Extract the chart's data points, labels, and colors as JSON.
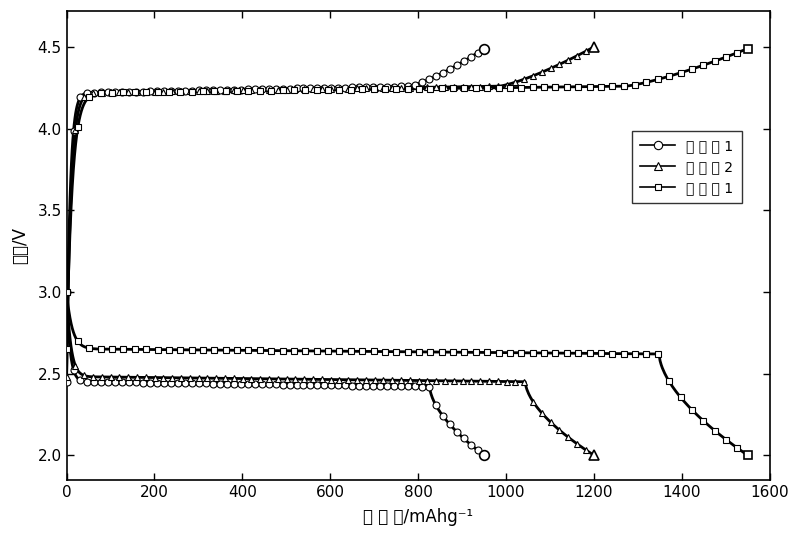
{
  "title": "",
  "xlabel": "比 容 量/mAhg⁻¹",
  "ylabel": "电压/V",
  "xlim": [
    0,
    1600
  ],
  "ylim": [
    1.85,
    4.72
  ],
  "xticks": [
    0,
    200,
    400,
    600,
    800,
    1000,
    1200,
    1400,
    1600
  ],
  "yticks": [
    2.0,
    2.5,
    3.0,
    3.5,
    4.0,
    4.5
  ],
  "legend_labels": [
    "对 比 例 1",
    "对 比 例 2",
    "实 施 例 1"
  ],
  "legend_markers": [
    "o",
    "^",
    "s"
  ],
  "line_color": "#000000",
  "background_color": "#ffffff",
  "series": [
    {
      "name": "对 比 例 1",
      "marker": "o",
      "capacity_max": 950,
      "discharge_start": 3.0,
      "discharge_plateau": 2.45,
      "discharge_end": 2.0,
      "charge_start": 2.45,
      "charge_plateau": 4.22,
      "charge_peak": 4.49
    },
    {
      "name": "对 比 例 2",
      "marker": "^",
      "capacity_max": 1200,
      "discharge_start": 3.0,
      "discharge_plateau": 2.48,
      "discharge_end": 2.0,
      "charge_start": 2.48,
      "charge_plateau": 4.22,
      "charge_peak": 4.5
    },
    {
      "name": "实 施 例 1",
      "marker": "s",
      "capacity_max": 1550,
      "discharge_start": 3.0,
      "discharge_plateau": 2.65,
      "discharge_end": 2.0,
      "charge_start": 2.65,
      "charge_plateau": 4.22,
      "charge_peak": 4.49
    }
  ]
}
